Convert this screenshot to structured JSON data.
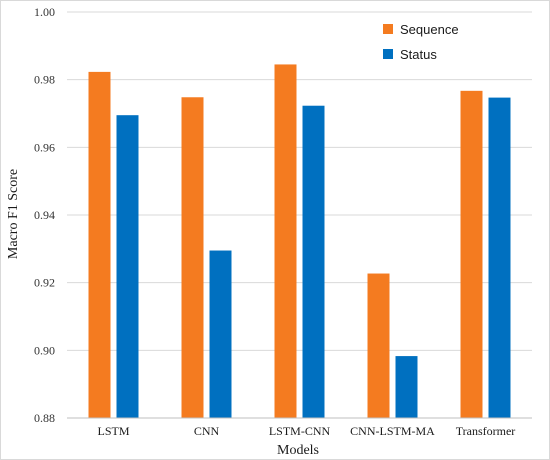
{
  "chart_data": {
    "type": "bar",
    "categories": [
      "LSTM",
      "CNN",
      "LSTM-CNN",
      "CNN-LSTM-MA",
      "Transformer"
    ],
    "series": [
      {
        "name": "Sequence",
        "values": [
          0.9823,
          0.9748,
          0.9845,
          0.9227,
          0.9767
        ],
        "color": "#F47B20"
      },
      {
        "name": "Status",
        "values": [
          0.9695,
          0.9295,
          0.9723,
          0.8983,
          0.9747
        ],
        "color": "#0070C0"
      }
    ],
    "xlabel": "Models",
    "ylabel": "Macro F1 Score",
    "ylim": [
      0.88,
      1.0
    ],
    "yticks": [
      "0.88",
      "0.90",
      "0.92",
      "0.94",
      "0.96",
      "0.98",
      "1.00"
    ],
    "grid": true,
    "legend_position": "top-right",
    "gridline_color": "#d9d9d9",
    "axis_color": "#bfbfbf"
  }
}
